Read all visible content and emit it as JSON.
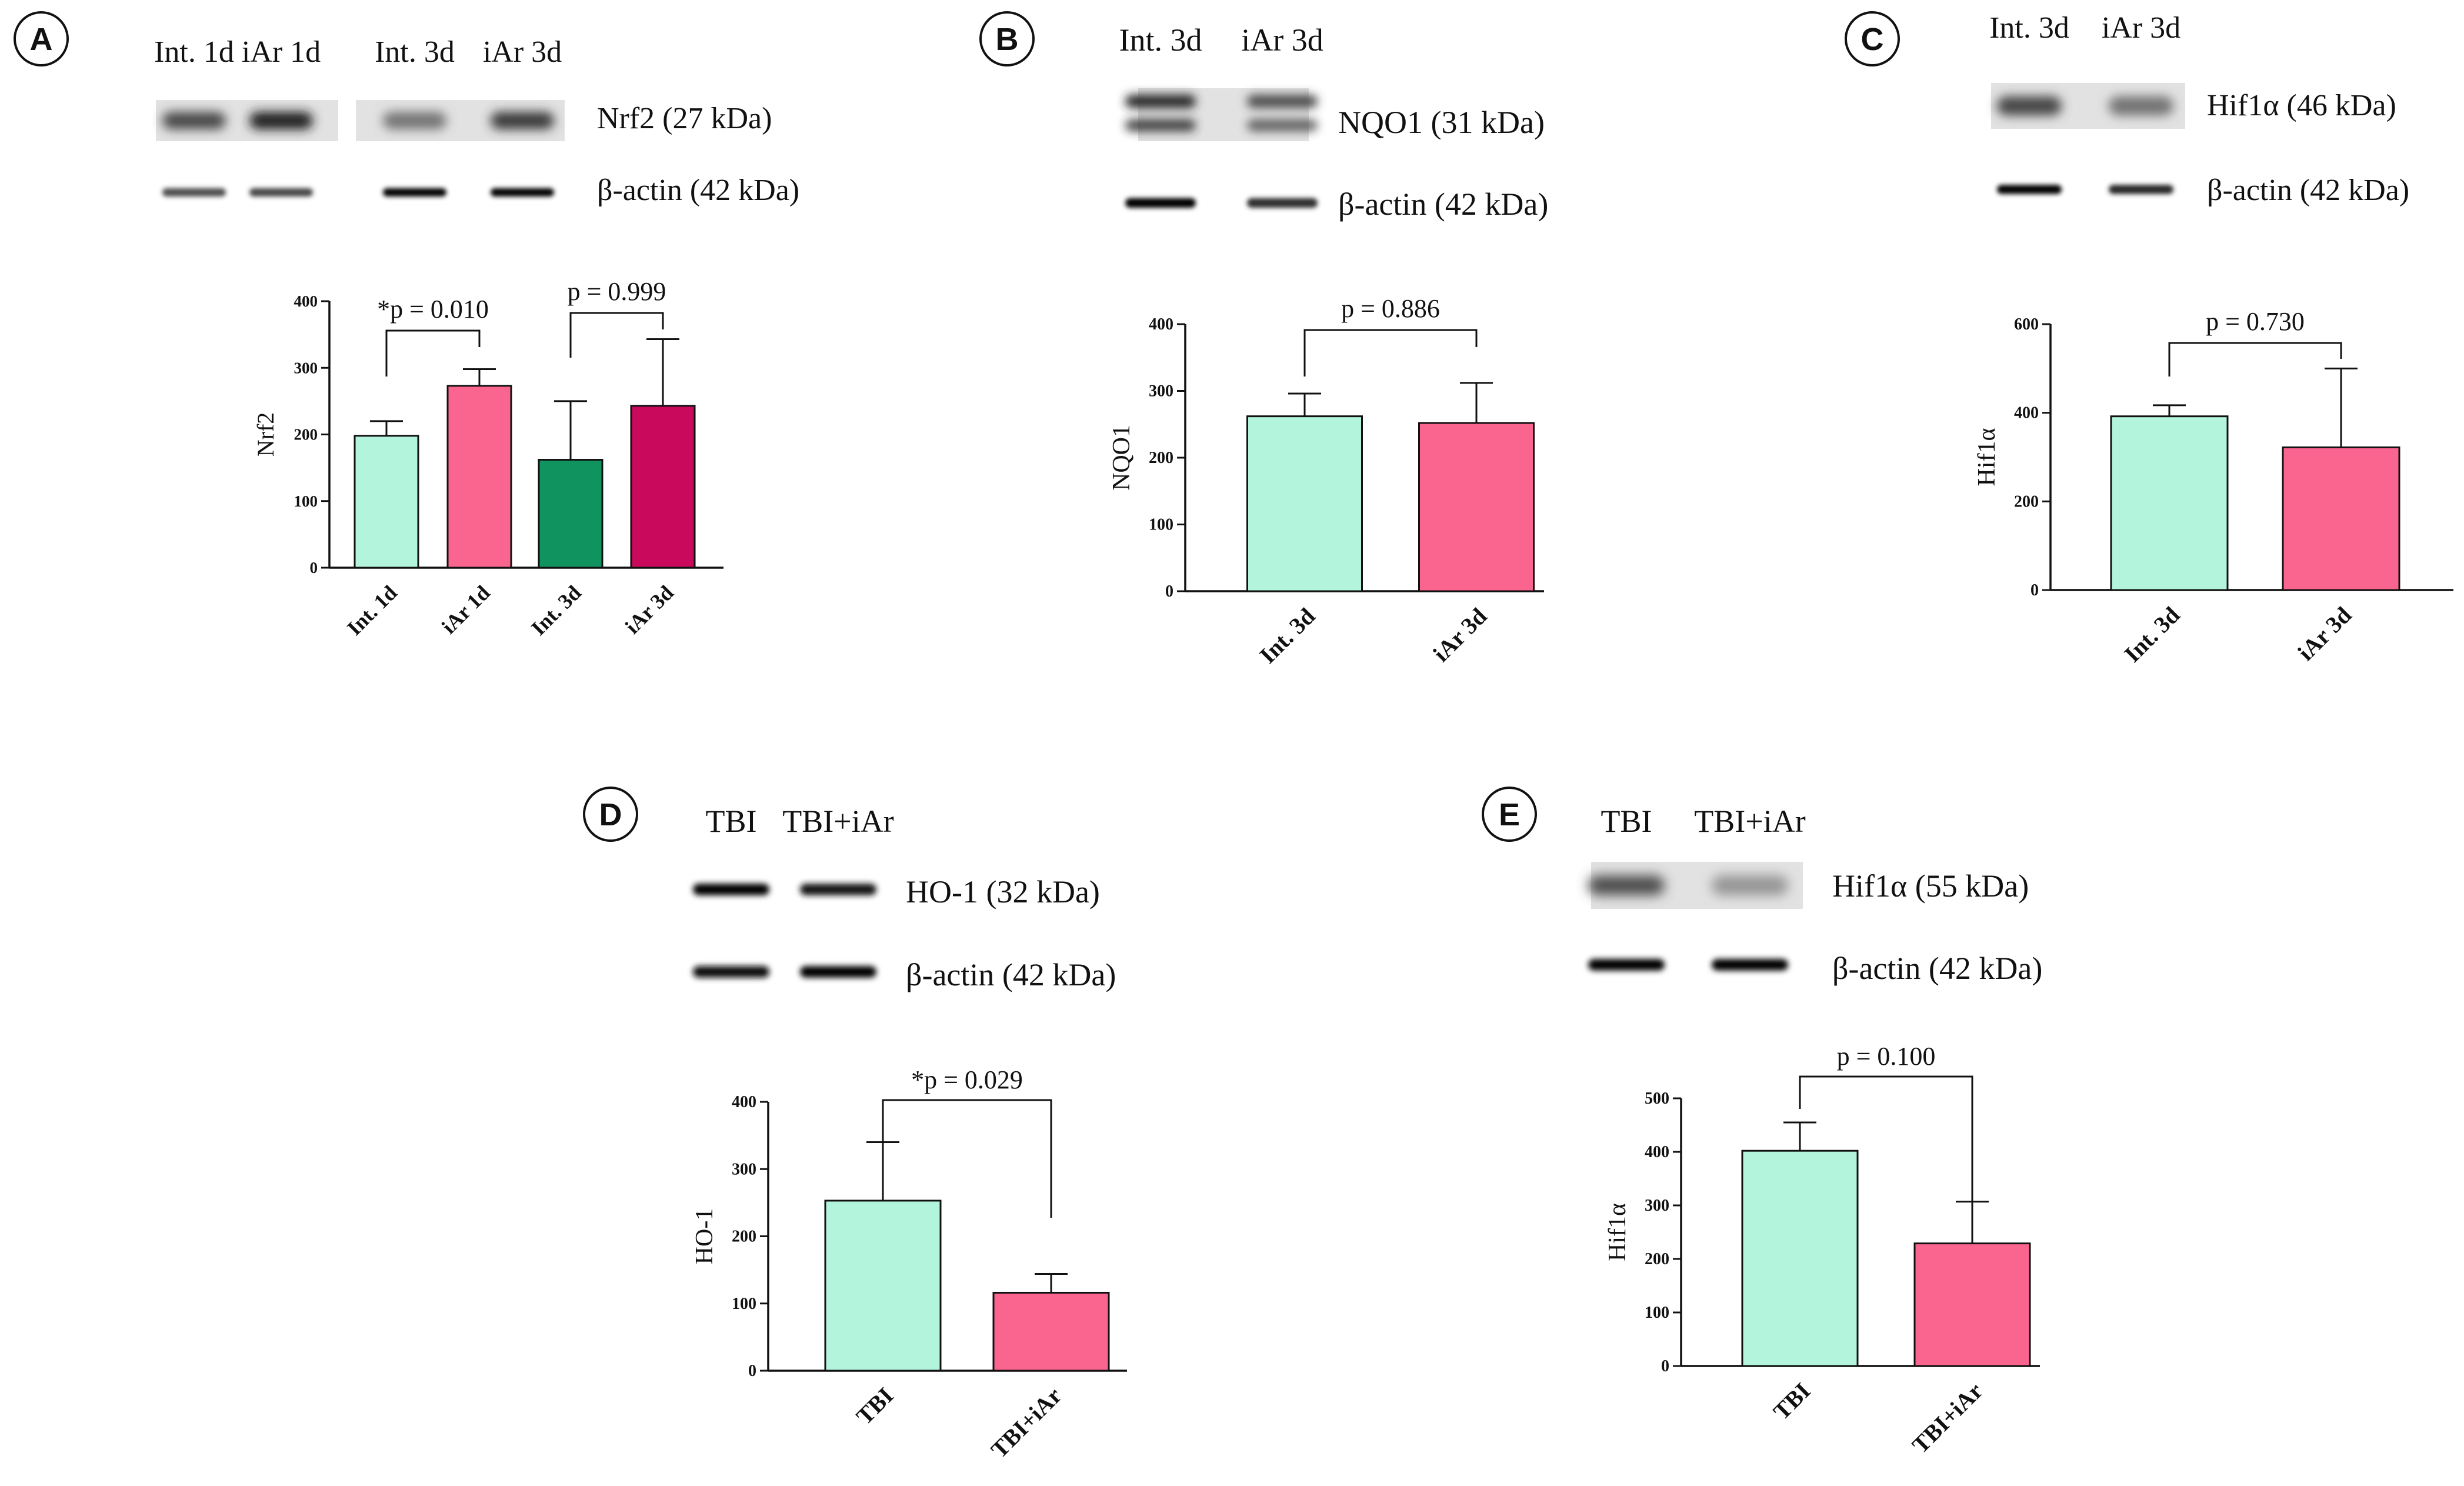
{
  "colors": {
    "int_1d": "#b3f5dc",
    "iar_1d": "#fa6590",
    "int_3d": "#10935e",
    "iar_3d": "#c8095c",
    "axis": "#111111"
  },
  "chart_data": [
    {
      "panel": "A",
      "type": "bar",
      "blot": {
        "lanes": [
          "Int. 1d",
          "iAr 1d",
          "Int. 3d",
          "iAr 3d"
        ],
        "bands": [
          "Nrf2 (27 kDa)",
          "β-actin (42 kDa)"
        ]
      },
      "categories": [
        "Int. 1d",
        "iAr 1d",
        "Int. 3d",
        "iAr 3d"
      ],
      "values": [
        198,
        273,
        162,
        243
      ],
      "errors": [
        22,
        25,
        88,
        100
      ],
      "bar_colors": [
        "#b3f5dc",
        "#fa6590",
        "#10935e",
        "#c8095c"
      ],
      "ylabel": "Nrf2",
      "ylim": [
        0,
        400
      ],
      "yticks": [
        0,
        100,
        200,
        300,
        400
      ],
      "grid": false,
      "comparisons": [
        {
          "between": [
            0,
            1
          ],
          "label": "*p = 0.010"
        },
        {
          "between": [
            2,
            3
          ],
          "label": "p = 0.999"
        }
      ]
    },
    {
      "panel": "B",
      "type": "bar",
      "blot": {
        "lanes": [
          "Int. 3d",
          "iAr 3d"
        ],
        "bands": [
          "NQO1 (31 kDa)",
          "β-actin (42 kDa)"
        ]
      },
      "categories": [
        "Int. 3d",
        "iAr 3d"
      ],
      "values": [
        262,
        252
      ],
      "errors": [
        34,
        60
      ],
      "bar_colors": [
        "#b3f5dc",
        "#fa6590"
      ],
      "ylabel": "NQO1",
      "ylim": [
        0,
        400
      ],
      "yticks": [
        0,
        100,
        200,
        300,
        400
      ],
      "grid": false,
      "comparisons": [
        {
          "between": [
            0,
            1
          ],
          "label": "p = 0.886"
        }
      ]
    },
    {
      "panel": "C",
      "type": "bar",
      "blot": {
        "lanes": [
          "Int. 3d",
          "iAr 3d"
        ],
        "bands": [
          "Hif1α (46 kDa)",
          "β-actin (42 kDa)"
        ]
      },
      "categories": [
        "Int. 3d",
        "iAr 3d"
      ],
      "values": [
        392,
        322
      ],
      "errors": [
        25,
        178
      ],
      "bar_colors": [
        "#b3f5dc",
        "#fa6590"
      ],
      "ylabel": "Hif1α",
      "ylim": [
        0,
        600
      ],
      "yticks": [
        0,
        200,
        400,
        600
      ],
      "grid": false,
      "comparisons": [
        {
          "between": [
            0,
            1
          ],
          "label": "p = 0.730"
        }
      ]
    },
    {
      "panel": "D",
      "type": "bar",
      "blot": {
        "lanes": [
          "TBI",
          "TBI+iAr"
        ],
        "bands": [
          "HO-1 (32 kDa)",
          "β-actin (42 kDa)"
        ]
      },
      "categories": [
        "TBI",
        "TBI+iAr"
      ],
      "values": [
        253,
        116
      ],
      "errors": [
        87,
        28
      ],
      "bar_colors": [
        "#b3f5dc",
        "#fa6590"
      ],
      "ylabel": "HO-1",
      "ylim": [
        0,
        400
      ],
      "yticks": [
        0,
        100,
        200,
        300,
        400
      ],
      "grid": false,
      "comparisons": [
        {
          "between": [
            0,
            1
          ],
          "label": "*p = 0.029"
        }
      ]
    },
    {
      "panel": "E",
      "type": "bar",
      "blot": {
        "lanes": [
          "TBI",
          "TBI+iAr"
        ],
        "bands": [
          "Hif1α (55 kDa)",
          "β-actin (42 kDa)"
        ]
      },
      "categories": [
        "TBI",
        "TBI+iAr"
      ],
      "values": [
        402,
        229
      ],
      "errors": [
        53,
        78
      ],
      "bar_colors": [
        "#b3f5dc",
        "#fa6590"
      ],
      "ylabel": "Hif1α",
      "ylim": [
        0,
        500
      ],
      "yticks": [
        0,
        100,
        200,
        300,
        400,
        500
      ],
      "grid": false,
      "comparisons": [
        {
          "between": [
            0,
            1
          ],
          "label": "p = 0.100"
        }
      ]
    }
  ]
}
